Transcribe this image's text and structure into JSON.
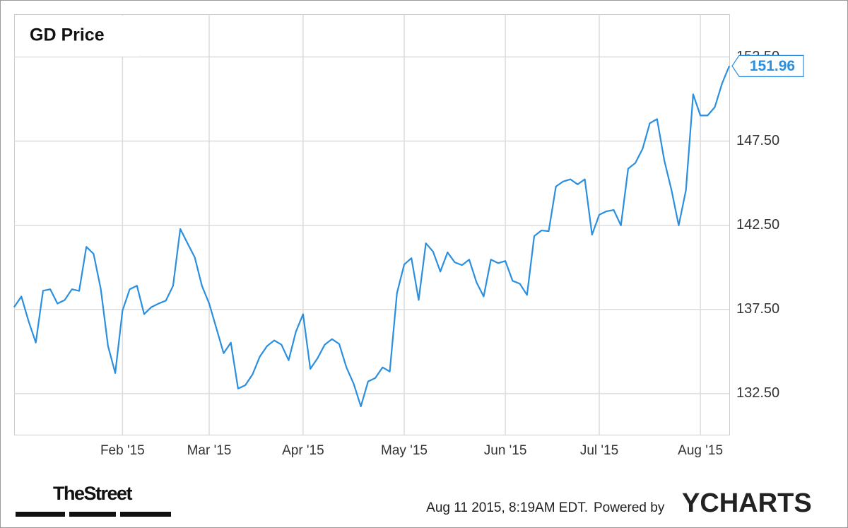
{
  "chart_data": {
    "type": "line",
    "title": "GD Price",
    "categories": [
      null,
      null,
      null,
      null,
      null,
      null,
      null,
      null,
      null,
      null,
      null,
      null,
      null,
      null,
      null,
      "Feb '15",
      null,
      null,
      null,
      null,
      null,
      null,
      null,
      null,
      null,
      null,
      null,
      "Mar '15",
      null,
      null,
      null,
      null,
      null,
      null,
      null,
      null,
      null,
      null,
      null,
      null,
      "Apr '15",
      null,
      null,
      null,
      null,
      null,
      null,
      null,
      null,
      null,
      null,
      null,
      null,
      null,
      "May '15",
      null,
      null,
      null,
      null,
      null,
      null,
      null,
      null,
      null,
      null,
      null,
      null,
      null,
      "Jun '15",
      null,
      null,
      null,
      null,
      null,
      null,
      null,
      null,
      null,
      null,
      null,
      null,
      "Jul '15",
      null,
      null,
      null,
      null,
      null,
      null,
      null,
      null,
      null,
      null,
      null,
      null,
      null,
      "Aug '15",
      null,
      null,
      null,
      null
    ],
    "series": [
      {
        "name": "GD Price",
        "color": "#2b8fe0",
        "values": [
          137.64,
          138.27,
          136.8,
          135.53,
          138.61,
          138.7,
          137.85,
          138.06,
          138.7,
          138.6,
          141.22,
          140.8,
          138.7,
          135.32,
          133.72,
          137.43,
          138.7,
          138.91,
          137.22,
          137.64,
          137.85,
          138.02,
          138.9,
          142.28,
          141.43,
          140.6,
          138.9,
          137.85,
          136.38,
          134.9,
          135.53,
          132.8,
          133.0,
          133.64,
          134.69,
          135.32,
          135.66,
          135.41,
          134.48,
          136.17,
          137.22,
          133.97,
          134.6,
          135.41,
          135.74,
          135.45,
          134.06,
          133.09,
          131.74,
          133.22,
          133.43,
          134.06,
          133.81,
          138.48,
          140.17,
          140.55,
          138.06,
          141.43,
          140.93,
          139.75,
          140.89,
          140.3,
          140.13,
          140.46,
          139.12,
          138.27,
          140.46,
          140.25,
          140.38,
          139.2,
          139.03,
          138.36,
          141.86,
          142.19,
          142.15,
          144.8,
          145.1,
          145.23,
          144.93,
          145.23,
          141.94,
          143.12,
          143.33,
          143.41,
          142.49,
          145.86,
          146.2,
          147.04,
          148.56,
          148.81,
          146.36,
          144.59,
          142.49,
          144.59,
          150.28,
          149.02,
          149.02,
          149.52,
          150.92,
          151.96
        ]
      }
    ],
    "ylim": [
      130.06,
      155.04
    ],
    "yticks": [
      {
        "value": 132.5,
        "label": "132.50"
      },
      {
        "value": 137.5,
        "label": "137.50"
      },
      {
        "value": 142.5,
        "label": "142.50"
      },
      {
        "value": 147.5,
        "label": "147.50"
      },
      {
        "value": 152.5,
        "label": "152.50"
      }
    ],
    "grid": true,
    "publisher": "TheStreet",
    "timestamp": "Aug 11 2015, 8:19AM EDT.",
    "credit": "Powered by",
    "brand": "YCHARTS"
  }
}
